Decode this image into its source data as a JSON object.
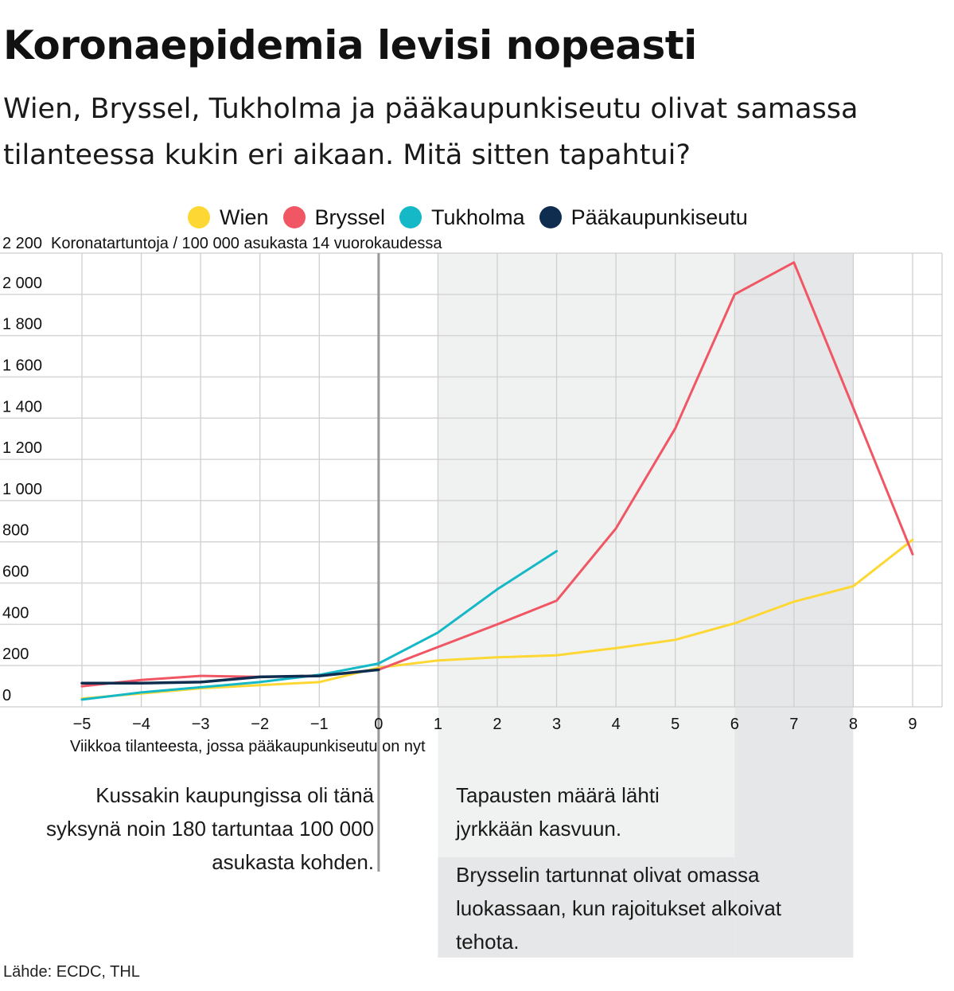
{
  "title": "Koronaepidemia levisi nopeasti",
  "subtitle": "Wien, Bryssel, Tukholma ja pääkaupunkiseutu olivat samassa tilanteessa kukin eri aikaan. Mitä sitten tapahtui?",
  "source": "Lähde: ECDC, THL",
  "annotations": {
    "left": "Kussakin kaupungissa oli tänä syksynä noin 180 tartuntaa 100 000 asukasta kohden.",
    "growth": "Tapausten määrä lähti jyrkkään kasvuun.",
    "restrictions": "Brysselin tartunnat olivat omassa luokassaan, kun rajoitukset alkoivat tehota."
  },
  "chart_data": {
    "type": "line",
    "title": "Koronaepidemia levisi nopeasti",
    "ylabel": "Koronatartuntoja / 100 000 asukasta 14 vuorokaudessa",
    "xlabel": "Viikkoa tilanteesta, jossa pääkaupunkiseutu on nyt",
    "xlim": [
      -5,
      9
    ],
    "ylim": [
      0,
      2200
    ],
    "x_ticks": [
      -5,
      -4,
      -3,
      -2,
      -1,
      0,
      1,
      2,
      3,
      4,
      5,
      6,
      7,
      8,
      9
    ],
    "x_tick_labels": [
      "−5",
      "−4",
      "−3",
      "−2",
      "−1",
      "0",
      "1",
      "2",
      "3",
      "4",
      "5",
      "6",
      "7",
      "8",
      "9"
    ],
    "y_ticks": [
      0,
      200,
      400,
      600,
      800,
      1000,
      1200,
      1400,
      1600,
      1800,
      2000,
      2200
    ],
    "y_tick_labels": [
      "0",
      "200",
      "400",
      "600",
      "800",
      "1 000",
      "1 200",
      "1 400",
      "1 600",
      "1 800",
      "2 000",
      "2 200"
    ],
    "grid": true,
    "legend_position": "top",
    "shaded_regions": [
      {
        "from": 1,
        "to": 6,
        "color": "#f0f1f1"
      },
      {
        "from": 6,
        "to": 8,
        "color": "#e6e7e8"
      }
    ],
    "reference_line_x": 0,
    "series": [
      {
        "name": "Wien",
        "color": "#fdd835",
        "x": [
          -5,
          -4,
          -3,
          -2,
          -1,
          0,
          1,
          2,
          3,
          4,
          5,
          6,
          7,
          8,
          9
        ],
        "values": [
          40,
          65,
          90,
          105,
          120,
          190,
          225,
          240,
          250,
          285,
          325,
          405,
          510,
          585,
          810
        ]
      },
      {
        "name": "Bryssel",
        "color": "#f05663",
        "x": [
          -5,
          -4,
          -3,
          -2,
          -1,
          0,
          1,
          2,
          3,
          4,
          5,
          6,
          7,
          8,
          9
        ],
        "values": [
          100,
          130,
          150,
          145,
          150,
          180,
          290,
          400,
          515,
          865,
          1350,
          2000,
          2155,
          1450,
          740
        ]
      },
      {
        "name": "Tukholma",
        "color": "#15b8c6",
        "x": [
          -5,
          -4,
          -3,
          -2,
          -1,
          0,
          1,
          2,
          3
        ],
        "values": [
          35,
          70,
          95,
          120,
          155,
          210,
          360,
          570,
          755
        ]
      },
      {
        "name": "Pääkaupunkiseutu",
        "color": "#0f2d4f",
        "x": [
          -5,
          -4,
          -3,
          -2,
          -1,
          0
        ],
        "values": [
          115,
          115,
          120,
          145,
          150,
          180
        ]
      }
    ]
  }
}
